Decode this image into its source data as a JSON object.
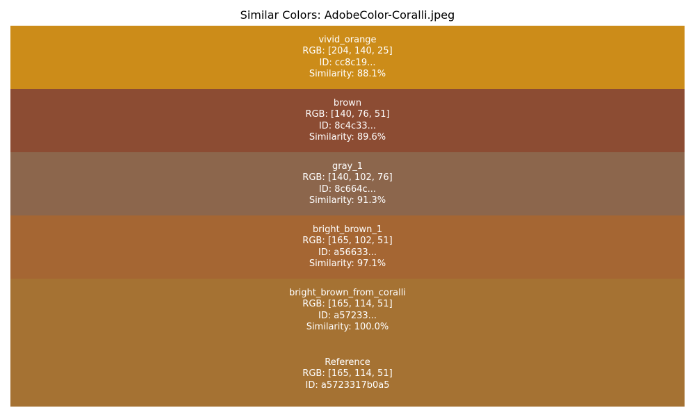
{
  "chart_data": {
    "type": "table",
    "title": "Similar Colors: AdobeColor-Coralli.jpeg",
    "rows": [
      {
        "name": "vivid_orange",
        "rgb": [
          204,
          140,
          25
        ],
        "rgb_text": "RGB: [204, 140, 25]",
        "id_text": "ID: cc8c19...",
        "similarity": 88.1,
        "similarity_text": "Similarity: 88.1%",
        "color": "#cc8c19"
      },
      {
        "name": "brown",
        "rgb": [
          140,
          76,
          51
        ],
        "rgb_text": "RGB: [140, 76, 51]",
        "id_text": "ID: 8c4c33...",
        "similarity": 89.6,
        "similarity_text": "Similarity: 89.6%",
        "color": "#8c4c33"
      },
      {
        "name": "gray_1",
        "rgb": [
          140,
          102,
          76
        ],
        "rgb_text": "RGB: [140, 102, 76]",
        "id_text": "ID: 8c664c...",
        "similarity": 91.3,
        "similarity_text": "Similarity: 91.3%",
        "color": "#8c664c"
      },
      {
        "name": "bright_brown_1",
        "rgb": [
          165,
          102,
          51
        ],
        "rgb_text": "RGB: [165, 102, 51]",
        "id_text": "ID: a56633...",
        "similarity": 97.1,
        "similarity_text": "Similarity: 97.1%",
        "color": "#a56633"
      },
      {
        "name": "bright_brown_from_coralli",
        "rgb": [
          165,
          114,
          51
        ],
        "rgb_text": "RGB: [165, 114, 51]",
        "id_text": "ID: a57233...",
        "similarity": 100.0,
        "similarity_text": "Similarity: 100.0%",
        "color": "#a57233"
      }
    ],
    "reference": {
      "name": "Reference",
      "rgb": [
        165,
        114,
        51
      ],
      "rgb_text": "RGB: [165, 114, 51]",
      "id_text": "ID: a5723317b0a5",
      "color": "#a57233"
    }
  }
}
